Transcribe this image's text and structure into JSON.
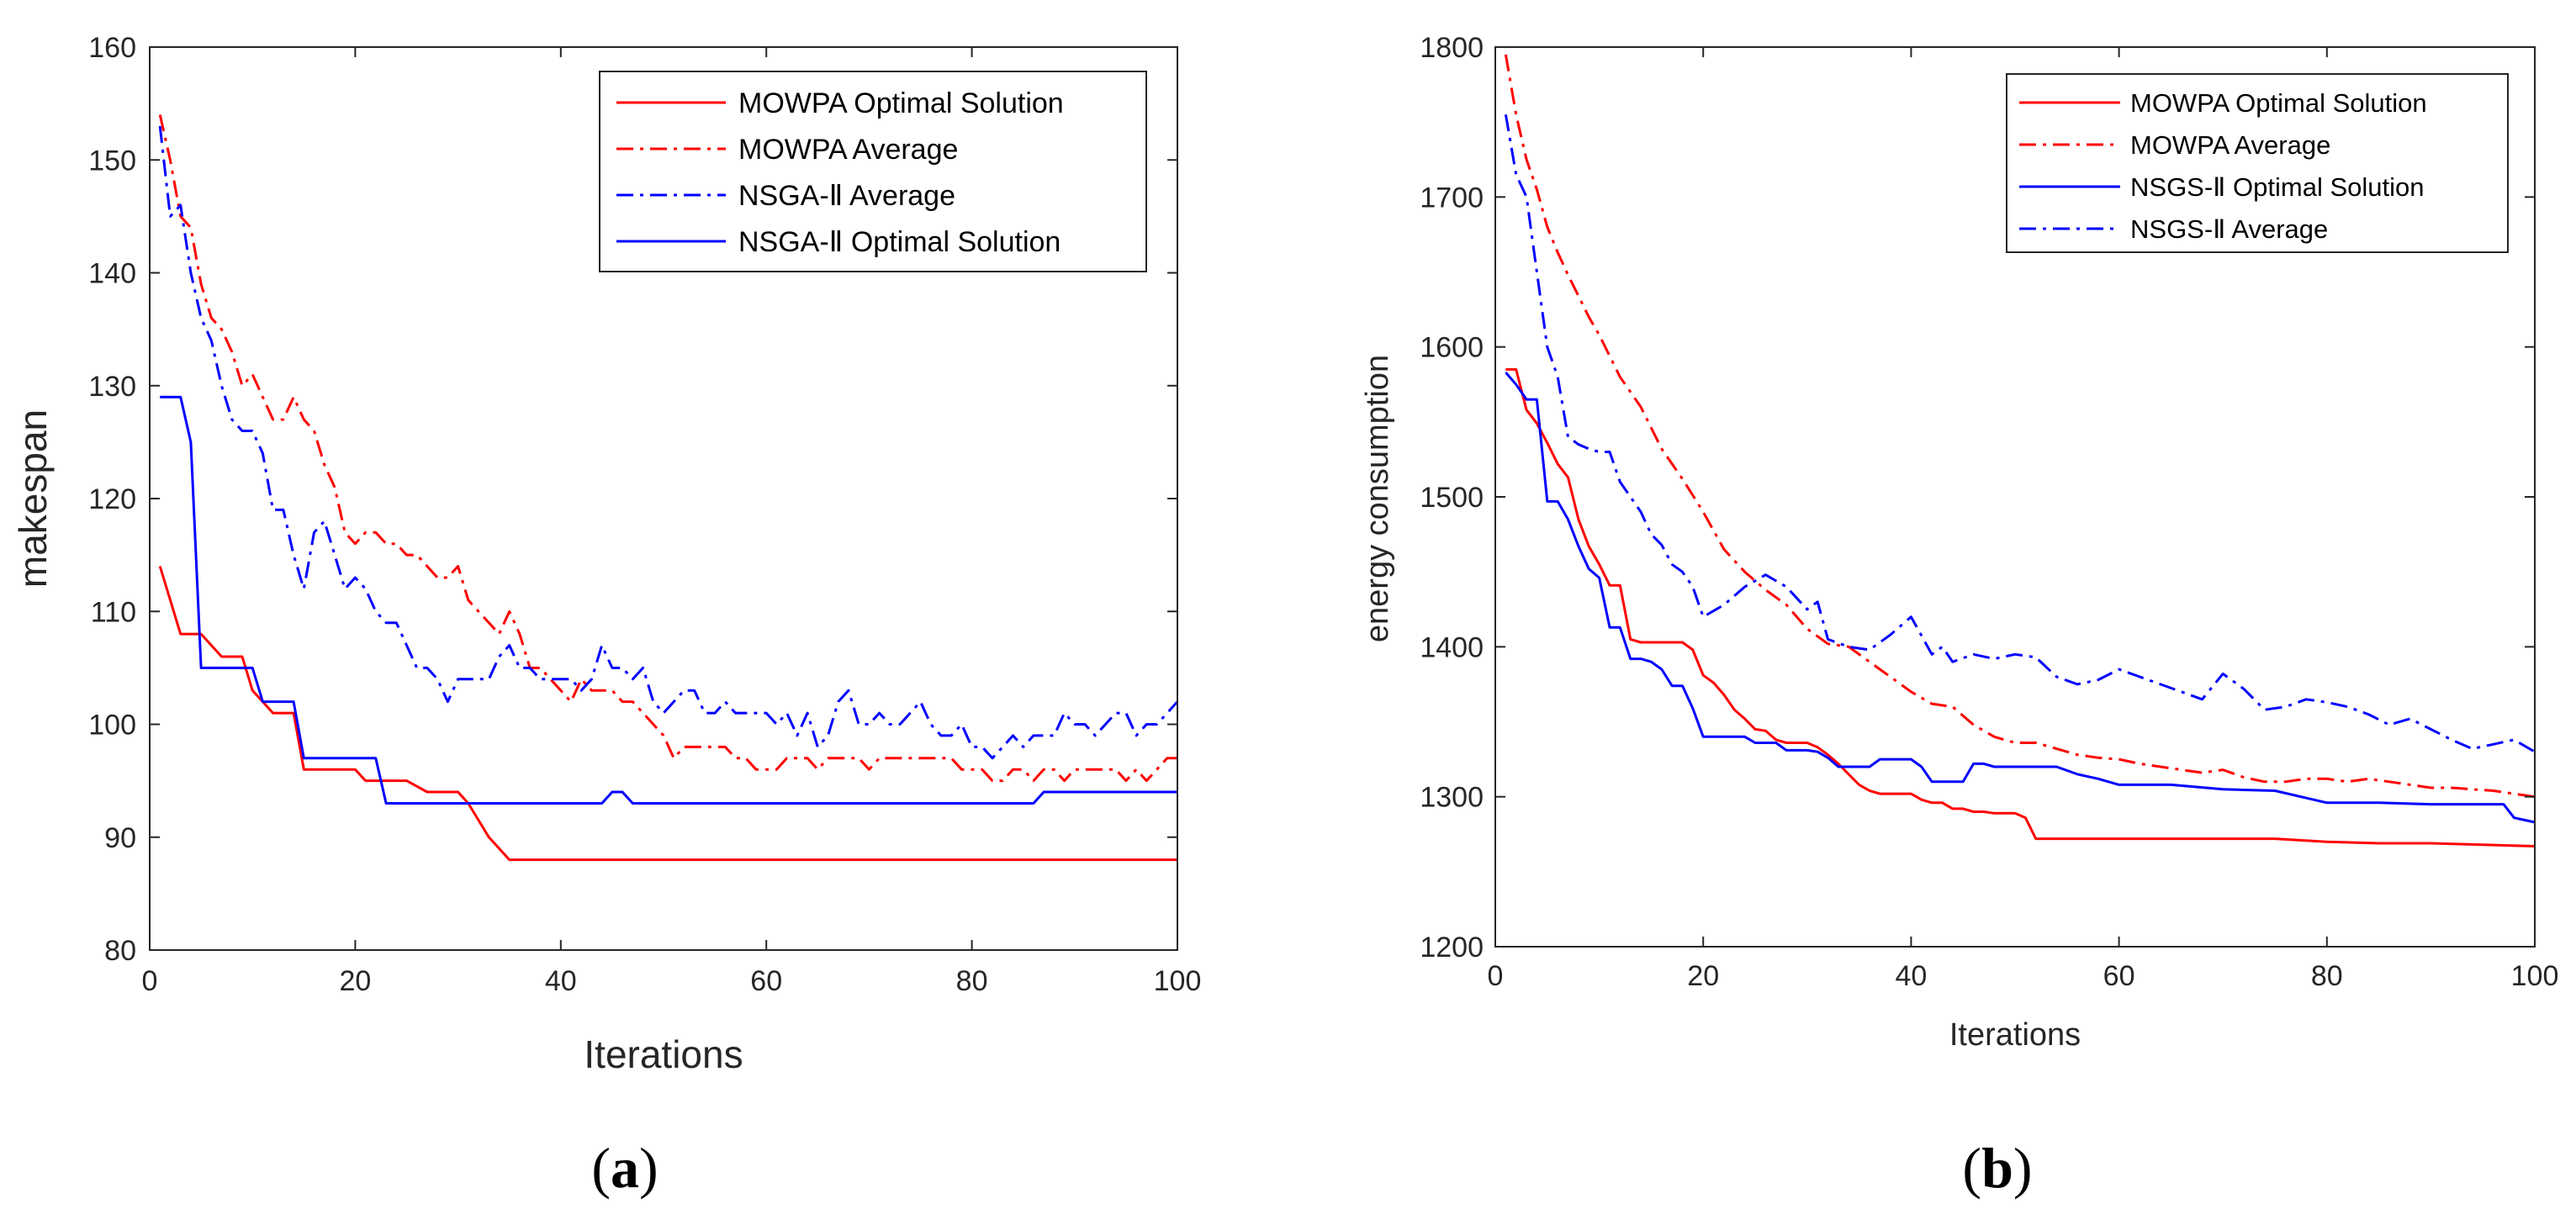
{
  "chart_data": [
    {
      "type": "line",
      "panel_label": "a",
      "title": "",
      "xlabel": "Iterations",
      "ylabel": "makespan",
      "xlim": [
        0,
        100
      ],
      "ylim": [
        80,
        160
      ],
      "xticks": [
        "0",
        "20",
        "40",
        "60",
        "80",
        "100"
      ],
      "yticks": [
        "80",
        "90",
        "100",
        "110",
        "120",
        "130",
        "140",
        "150",
        "160"
      ],
      "legend_position": "top-right",
      "series": [
        {
          "name": "MOWPA Optimal Solution",
          "color": "#ff0000",
          "style": "solid",
          "x": [
            1,
            3,
            5,
            7,
            9,
            10,
            12,
            14,
            15,
            20,
            21,
            25,
            27,
            30,
            31,
            33,
            35,
            100
          ],
          "values": [
            114,
            108,
            108,
            106,
            106,
            103,
            101,
            101,
            96,
            96,
            95,
            95,
            94,
            94,
            93,
            90,
            88,
            88
          ]
        },
        {
          "name": "MOWPA Average",
          "color": "#ff0000",
          "style": "dashdot",
          "x": [
            1,
            2,
            3,
            4,
            5,
            6,
            7,
            8,
            9,
            10,
            11,
            12,
            13,
            14,
            15,
            16,
            17,
            18,
            19,
            20,
            21,
            22,
            23,
            24,
            25,
            26,
            27,
            28,
            29,
            30,
            31,
            32,
            33,
            34,
            35,
            36,
            37,
            38,
            39,
            40,
            41,
            42,
            43,
            44,
            45,
            46,
            47,
            48,
            49,
            50,
            51,
            52,
            53,
            54,
            55,
            56,
            57,
            58,
            59,
            60,
            61,
            62,
            63,
            64,
            65,
            66,
            67,
            68,
            69,
            70,
            71,
            72,
            73,
            74,
            75,
            76,
            77,
            78,
            79,
            80,
            81,
            82,
            83,
            84,
            85,
            86,
            87,
            88,
            89,
            90,
            91,
            92,
            93,
            94,
            95,
            96,
            97,
            98,
            99,
            100
          ],
          "values": [
            154,
            150,
            145,
            144,
            139,
            136,
            135,
            133,
            130,
            131,
            129,
            127,
            127,
            129,
            127,
            126,
            123,
            121,
            117,
            116,
            117,
            117,
            116,
            116,
            115,
            115,
            114,
            113,
            113,
            114,
            111,
            110,
            109,
            108,
            110,
            108,
            105,
            105,
            104,
            103,
            102,
            104,
            103,
            103,
            103,
            102,
            102,
            101,
            100,
            99,
            97,
            98,
            98,
            98,
            98,
            98,
            97,
            97,
            96,
            96,
            96,
            97,
            97,
            97,
            96,
            97,
            97,
            97,
            97,
            96,
            97,
            97,
            97,
            97,
            97,
            97,
            97,
            97,
            96,
            96,
            96,
            95,
            95,
            96,
            96,
            95,
            96,
            96,
            95,
            96,
            96,
            96,
            96,
            96,
            95,
            96,
            95,
            96,
            97,
            97
          ]
        },
        {
          "name": "NSGA-Ⅱ Average",
          "color": "#0000ff",
          "style": "dashdot",
          "x": [
            1,
            2,
            3,
            4,
            5,
            6,
            7,
            8,
            9,
            10,
            11,
            12,
            13,
            14,
            15,
            16,
            17,
            18,
            19,
            20,
            21,
            22,
            23,
            24,
            25,
            26,
            27,
            28,
            29,
            30,
            31,
            32,
            33,
            34,
            35,
            36,
            37,
            38,
            39,
            40,
            41,
            42,
            43,
            44,
            45,
            46,
            47,
            48,
            49,
            50,
            51,
            52,
            53,
            54,
            55,
            56,
            57,
            58,
            59,
            60,
            61,
            62,
            63,
            64,
            65,
            66,
            67,
            68,
            69,
            70,
            71,
            72,
            73,
            74,
            75,
            76,
            77,
            78,
            79,
            80,
            81,
            82,
            83,
            84,
            85,
            86,
            87,
            88,
            89,
            90,
            91,
            92,
            93,
            94,
            95,
            96,
            97,
            98,
            99,
            100
          ],
          "values": [
            153,
            145,
            146,
            140,
            136,
            134,
            130,
            127,
            126,
            126,
            124,
            119,
            119,
            115,
            112,
            117,
            118,
            115,
            112,
            113,
            112,
            110,
            109,
            109,
            107,
            105,
            105,
            104,
            102,
            104,
            104,
            104,
            104,
            106,
            107,
            105,
            105,
            104,
            104,
            104,
            104,
            103,
            104,
            107,
            105,
            105,
            104,
            105,
            102,
            101,
            102,
            103,
            103,
            101,
            101,
            102,
            101,
            101,
            101,
            101,
            100,
            101,
            99,
            101,
            98,
            99,
            102,
            103,
            100,
            100,
            101,
            100,
            100,
            101,
            102,
            100,
            99,
            99,
            100,
            98,
            98,
            97,
            98,
            99,
            98,
            99,
            99,
            99,
            101,
            100,
            100,
            99,
            100,
            101,
            101,
            99,
            100,
            100,
            101,
            102
          ]
        },
        {
          "name": "NSGA-Ⅱ Optimal Solution",
          "color": "#0000ff",
          "style": "solid",
          "x": [
            1,
            3,
            4,
            5,
            10,
            11,
            14,
            15,
            22,
            23,
            44,
            45,
            46,
            47,
            86,
            87,
            100
          ],
          "values": [
            129,
            129,
            125,
            105,
            105,
            102,
            102,
            97,
            97,
            93,
            93,
            94,
            94,
            93,
            93,
            94,
            94
          ]
        }
      ]
    },
    {
      "type": "line",
      "panel_label": "b",
      "title": "",
      "xlabel": "Iterations",
      "ylabel": "energy consumption",
      "xlim": [
        0,
        100
      ],
      "ylim": [
        1200,
        1800
      ],
      "xticks": [
        "0",
        "20",
        "40",
        "60",
        "80",
        "100"
      ],
      "yticks": [
        "1200",
        "1300",
        "1400",
        "1500",
        "1600",
        "1700",
        "1800"
      ],
      "legend_position": "top-right",
      "series": [
        {
          "name": "MOWPA Optimal Solution",
          "color": "#ff0000",
          "style": "solid",
          "x": [
            1,
            2,
            3,
            4,
            5,
            6,
            7,
            8,
            9,
            10,
            11,
            12,
            13,
            14,
            15,
            16,
            17,
            18,
            19,
            20,
            21,
            22,
            23,
            24,
            25,
            26,
            27,
            28,
            29,
            30,
            31,
            32,
            33,
            34,
            35,
            36,
            37,
            38,
            39,
            40,
            41,
            42,
            43,
            44,
            45,
            46,
            47,
            48,
            49,
            50,
            51,
            52,
            60,
            70,
            75,
            80,
            85,
            90,
            95,
            100
          ],
          "values": [
            1585,
            1585,
            1558,
            1549,
            1536,
            1522,
            1513,
            1485,
            1467,
            1455,
            1441,
            1441,
            1405,
            1403,
            1403,
            1403,
            1403,
            1403,
            1398,
            1381,
            1376,
            1368,
            1358,
            1352,
            1345,
            1344,
            1338,
            1336,
            1336,
            1336,
            1333,
            1328,
            1322,
            1315,
            1308,
            1304,
            1302,
            1302,
            1302,
            1302,
            1298,
            1296,
            1296,
            1292,
            1292,
            1290,
            1290,
            1289,
            1289,
            1289,
            1286,
            1272,
            1272,
            1272,
            1272,
            1270,
            1269,
            1269,
            1268,
            1267
          ]
        },
        {
          "name": "MOWPA Average",
          "color": "#ff0000",
          "style": "dashdot",
          "x": [
            1,
            2,
            3,
            4,
            5,
            6,
            7,
            8,
            9,
            10,
            12,
            14,
            16,
            18,
            20,
            22,
            24,
            26,
            28,
            30,
            32,
            34,
            36,
            38,
            40,
            42,
            44,
            46,
            48,
            50,
            52,
            54,
            56,
            58,
            60,
            62,
            64,
            66,
            68,
            70,
            72,
            74,
            76,
            78,
            80,
            82,
            84,
            86,
            88,
            90,
            92,
            94,
            96,
            98,
            100
          ],
          "values": [
            1795,
            1755,
            1725,
            1705,
            1680,
            1663,
            1648,
            1634,
            1620,
            1608,
            1580,
            1560,
            1532,
            1512,
            1490,
            1465,
            1450,
            1438,
            1428,
            1412,
            1402,
            1400,
            1390,
            1380,
            1370,
            1362,
            1360,
            1348,
            1340,
            1336,
            1336,
            1332,
            1328,
            1326,
            1325,
            1322,
            1320,
            1318,
            1316,
            1318,
            1313,
            1310,
            1310,
            1312,
            1312,
            1310,
            1312,
            1310,
            1308,
            1306,
            1306,
            1305,
            1304,
            1302,
            1300
          ]
        },
        {
          "name": "NSGS-Ⅱ Optimal Solution",
          "color": "#0000ff",
          "style": "solid",
          "x": [
            1,
            2,
            3,
            4,
            5,
            6,
            7,
            8,
            9,
            10,
            11,
            12,
            13,
            14,
            15,
            16,
            17,
            18,
            19,
            20,
            21,
            22,
            23,
            24,
            25,
            26,
            27,
            28,
            29,
            30,
            31,
            32,
            33,
            34,
            35,
            36,
            37,
            38,
            39,
            40,
            41,
            42,
            43,
            44,
            45,
            46,
            47,
            48,
            49,
            50,
            52,
            54,
            56,
            58,
            60,
            65,
            70,
            75,
            80,
            85,
            90,
            95,
            97,
            98,
            100
          ],
          "values": [
            1583,
            1575,
            1565,
            1565,
            1497,
            1497,
            1485,
            1467,
            1452,
            1446,
            1413,
            1413,
            1392,
            1392,
            1390,
            1385,
            1374,
            1374,
            1359,
            1340,
            1340,
            1340,
            1340,
            1340,
            1336,
            1336,
            1336,
            1331,
            1331,
            1331,
            1330,
            1326,
            1320,
            1320,
            1320,
            1320,
            1325,
            1325,
            1325,
            1325,
            1320,
            1310,
            1310,
            1310,
            1310,
            1322,
            1322,
            1320,
            1320,
            1320,
            1320,
            1320,
            1315,
            1312,
            1308,
            1308,
            1305,
            1304,
            1296,
            1296,
            1295,
            1295,
            1295,
            1286,
            1283
          ]
        },
        {
          "name": "NSGS-Ⅱ Average",
          "color": "#0000ff",
          "style": "dashdot",
          "x": [
            1,
            2,
            3,
            4,
            5,
            6,
            7,
            8,
            9,
            10,
            11,
            12,
            13,
            14,
            15,
            16,
            17,
            18,
            19,
            20,
            22,
            24,
            26,
            28,
            30,
            31,
            32,
            34,
            36,
            38,
            40,
            42,
            43,
            44,
            46,
            48,
            50,
            52,
            54,
            56,
            58,
            60,
            62,
            64,
            66,
            68,
            70,
            72,
            74,
            76,
            78,
            80,
            82,
            84,
            86,
            88,
            90,
            92,
            94,
            96,
            98,
            100
          ],
          "values": [
            1755,
            1715,
            1700,
            1650,
            1600,
            1580,
            1540,
            1535,
            1532,
            1530,
            1530,
            1510,
            1500,
            1490,
            1475,
            1468,
            1455,
            1450,
            1440,
            1420,
            1428,
            1440,
            1448,
            1440,
            1425,
            1430,
            1405,
            1400,
            1398,
            1408,
            1420,
            1395,
            1400,
            1390,
            1395,
            1392,
            1395,
            1393,
            1380,
            1375,
            1378,
            1385,
            1380,
            1375,
            1370,
            1365,
            1382,
            1372,
            1358,
            1360,
            1365,
            1363,
            1360,
            1355,
            1348,
            1352,
            1345,
            1338,
            1332,
            1335,
            1338,
            1330
          ]
        }
      ]
    }
  ]
}
